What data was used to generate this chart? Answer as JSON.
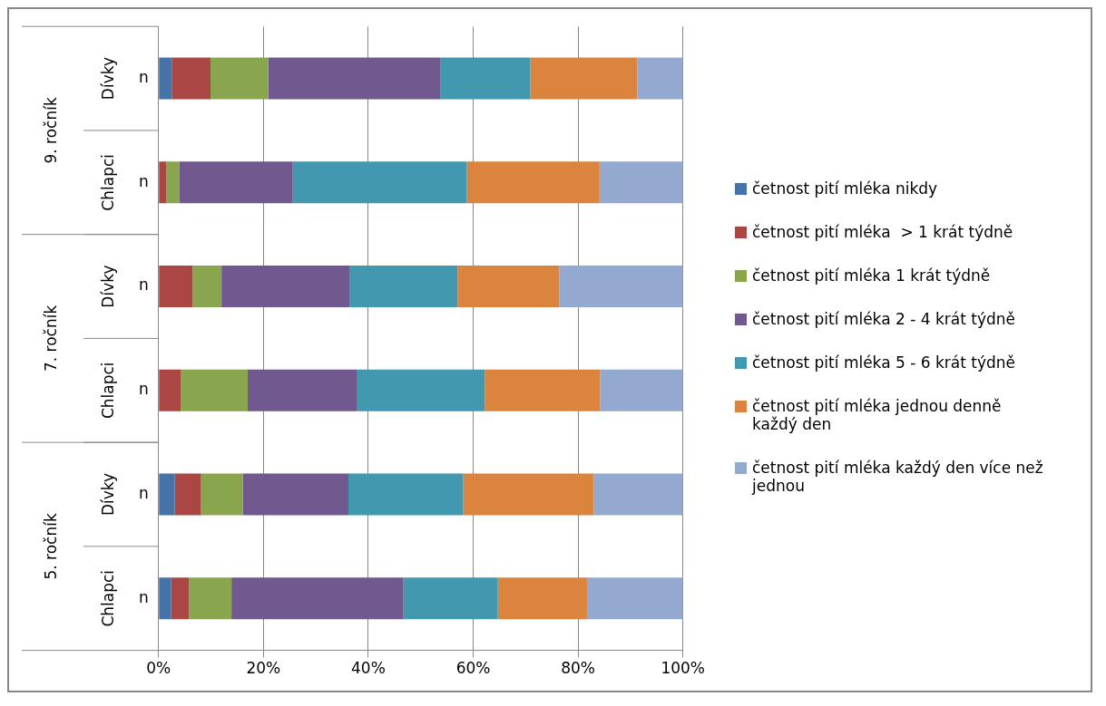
{
  "chart_data": {
    "type": "bar",
    "orientation": "horizontal",
    "stacked": true,
    "categories": [
      "n",
      "n",
      "n",
      "n",
      "n",
      "n"
    ],
    "series": [
      {
        "name": "četnost pití mléka nikdy",
        "color": "#4572a7",
        "values": [
          2.6,
          0,
          0,
          0,
          3.1,
          2.4
        ]
      },
      {
        "name": "četnost pití mléka  > 1 krát týdně",
        "color": "#aa4643",
        "values": [
          7.3,
          1.5,
          6.5,
          4.2,
          5.0,
          3.4
        ]
      },
      {
        "name": "četnost pití mléka 1 krát týdně",
        "color": "#89a54e",
        "values": [
          11.0,
          2.5,
          5.5,
          12.8,
          8.0,
          8.1
        ]
      },
      {
        "name": "četnost pití mléka 2 - 4 krát týdně",
        "color": "#71588f",
        "values": [
          32.9,
          21.6,
          24.5,
          20.9,
          20.1,
          32.8
        ]
      },
      {
        "name": "četnost pití mléka 5 - 6 krát týdně",
        "color": "#4198af",
        "values": [
          17.1,
          33.2,
          20.5,
          24.3,
          21.9,
          18.0
        ]
      },
      {
        "name": "četnost pití mléka jednou denně každý den",
        "color": "#db843d",
        "values": [
          20.4,
          25.3,
          19.4,
          22.0,
          24.9,
          17.0
        ]
      },
      {
        "name": "četnost pití mléka každý den více než jednou",
        "color": "#93a9cf",
        "values": [
          8.7,
          15.9,
          23.6,
          15.8,
          17.0,
          18.3
        ]
      }
    ],
    "annotations": [
      "Dívky",
      "Chlapci",
      "Dívky",
      "Chlapci",
      "Dívky",
      "Chlapci",
      "9. ročník",
      "7. ročník",
      "5. ročník"
    ],
    "xlim": [
      0,
      100
    ],
    "xticks": [
      {
        "value": 0,
        "label": "0%"
      },
      {
        "value": 20,
        "label": "20%"
      },
      {
        "value": 40,
        "label": "40%"
      },
      {
        "value": 60,
        "label": "60%"
      },
      {
        "value": 80,
        "label": "80%"
      },
      {
        "value": 100,
        "label": "100%"
      }
    ],
    "grid": "x",
    "legend": "right"
  }
}
